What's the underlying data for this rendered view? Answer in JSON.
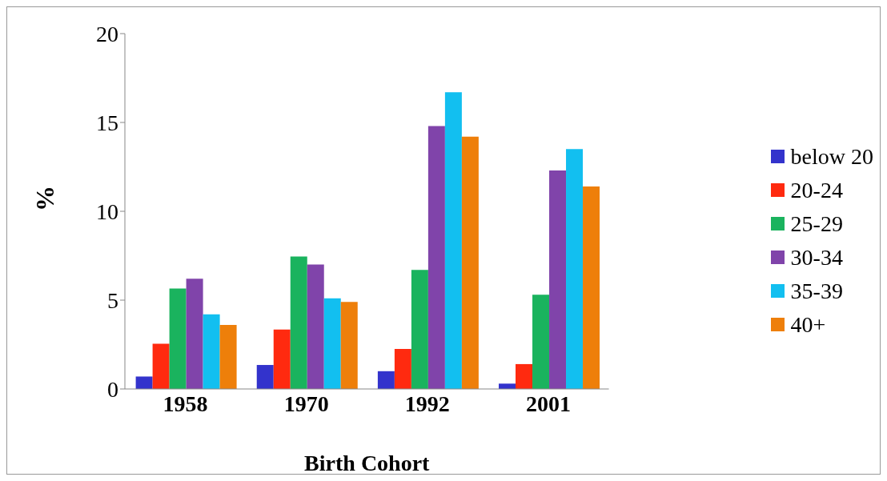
{
  "chart_data": {
    "type": "bar",
    "xlabel": "Birth Cohort",
    "ylabel": "%",
    "categories": [
      "1958",
      "1970",
      "1992",
      "2001"
    ],
    "series": [
      {
        "name": "below 20",
        "color": "#3333cc",
        "values": [
          0.7,
          1.35,
          1.0,
          0.3
        ]
      },
      {
        "name": "20-24",
        "color": "#ff2a0f",
        "values": [
          2.55,
          3.35,
          2.25,
          1.4
        ]
      },
      {
        "name": "25-29",
        "color": "#1ab35e",
        "values": [
          5.65,
          7.45,
          6.7,
          5.3
        ]
      },
      {
        "name": "30-34",
        "color": "#8044aa",
        "values": [
          6.2,
          7.0,
          14.8,
          12.3
        ]
      },
      {
        "name": "35-39",
        "color": "#12bff0",
        "values": [
          4.2,
          5.1,
          16.7,
          13.5
        ]
      },
      {
        "name": "40+",
        "color": "#ee7f0a",
        "values": [
          3.6,
          4.9,
          14.2,
          11.4
        ]
      }
    ],
    "ylim": [
      0,
      20
    ],
    "yticks": [
      0,
      5,
      10,
      15,
      20
    ],
    "grid": false,
    "legend": "right"
  }
}
